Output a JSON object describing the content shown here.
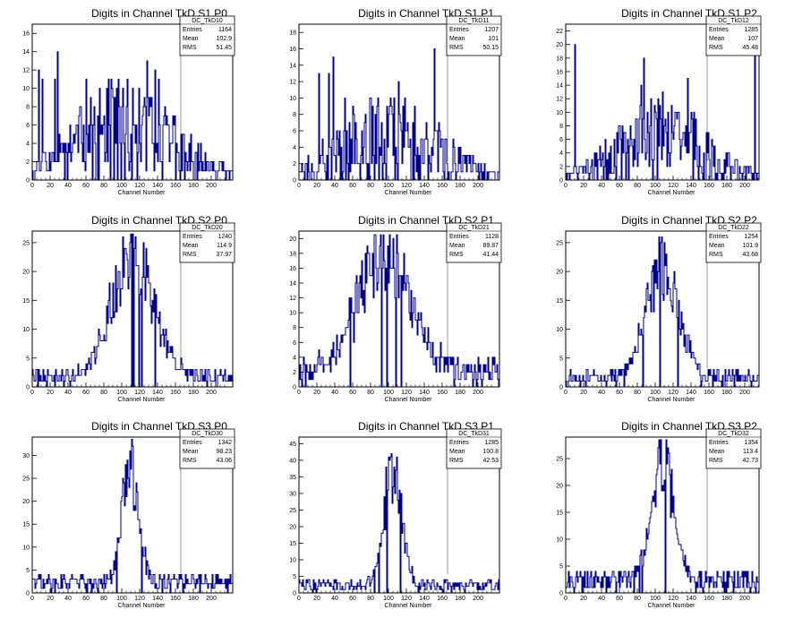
{
  "page": {
    "title": ""
  },
  "chart_data": [
    {
      "type": "histogram",
      "id": "p00",
      "title": "Digits in Channel TkD S1 P0",
      "xlabel": "Channel Number",
      "ylabel": "",
      "xlim": [
        0,
        224
      ],
      "ylim": [
        0,
        17
      ],
      "xticks": [
        0,
        20,
        40,
        60,
        80,
        100,
        120,
        140,
        160,
        180,
        200
      ],
      "yticks": [
        0,
        2,
        4,
        6,
        8,
        10,
        12,
        14,
        16
      ],
      "stats": {
        "name": "DC_TkD10",
        "entries": "1164",
        "mean": "102.9",
        "rms": "51.45"
      },
      "profile": {
        "shape": "flat",
        "mean": 102.9,
        "rms": 51.45,
        "peak": 16,
        "base": 7,
        "seed": 11
      }
    },
    {
      "type": "histogram",
      "id": "p01",
      "title": "Digits in Channel TkD S1 P1",
      "xlabel": "Channel Number",
      "ylabel": "",
      "xlim": [
        0,
        224
      ],
      "ylim": [
        0,
        19
      ],
      "xticks": [
        0,
        20,
        40,
        60,
        80,
        100,
        120,
        140,
        160,
        180,
        200
      ],
      "yticks": [
        0,
        2,
        4,
        6,
        8,
        10,
        12,
        14,
        16,
        18
      ],
      "stats": {
        "name": "DC_TkD11",
        "entries": "1207",
        "mean": "101",
        "rms": "50.15"
      },
      "profile": {
        "shape": "flat",
        "mean": 101,
        "rms": 50.15,
        "peak": 16,
        "base": 7,
        "seed": 23
      }
    },
    {
      "type": "histogram",
      "id": "p02",
      "title": "Digits in Channel TkD S1 P2",
      "xlabel": "Channel Number",
      "ylabel": "",
      "xlim": [
        0,
        216
      ],
      "ylim": [
        0,
        23
      ],
      "xticks": [
        0,
        20,
        40,
        60,
        80,
        100,
        120,
        140,
        160,
        180,
        200
      ],
      "yticks": [
        0,
        2,
        4,
        6,
        8,
        10,
        12,
        14,
        16,
        18,
        20,
        22
      ],
      "stats": {
        "name": "DC_TkD12",
        "entries": "1285",
        "mean": "107",
        "rms": "45.48"
      },
      "profile": {
        "shape": "flat",
        "mean": 107,
        "rms": 45.48,
        "peak": 22,
        "base": 8,
        "seed": 37
      }
    },
    {
      "type": "histogram",
      "id": "p10",
      "title": "Digits in Channel TkD S2 P0",
      "xlabel": "Channel Number",
      "ylabel": "",
      "xlim": [
        0,
        224
      ],
      "ylim": [
        0,
        27
      ],
      "xticks": [
        0,
        20,
        40,
        60,
        80,
        100,
        120,
        140,
        160,
        180,
        200
      ],
      "yticks": [
        0,
        5,
        10,
        15,
        20,
        25
      ],
      "stats": {
        "name": "DC_TkD20",
        "entries": "1240",
        "mean": "114.9",
        "rms": "37.97"
      },
      "profile": {
        "shape": "gauss",
        "mean": 112,
        "rms": 24,
        "peak": 26,
        "base": 2,
        "seed": 41
      }
    },
    {
      "type": "histogram",
      "id": "p11",
      "title": "Digits in Channel TkD S2 P1",
      "xlabel": "Channel Number",
      "ylabel": "",
      "xlim": [
        0,
        224
      ],
      "ylim": [
        0,
        21
      ],
      "xticks": [
        0,
        20,
        40,
        60,
        80,
        100,
        120,
        140,
        160,
        180,
        200
      ],
      "yticks": [
        0,
        2,
        4,
        6,
        8,
        10,
        12,
        14,
        16,
        18,
        20
      ],
      "stats": {
        "name": "DC_TkD21",
        "entries": "1128",
        "mean": "89.87",
        "rms": "41.44"
      },
      "profile": {
        "shape": "gauss",
        "mean": 95,
        "rms": 28,
        "peak": 20,
        "base": 3,
        "seed": 53
      }
    },
    {
      "type": "histogram",
      "id": "p12",
      "title": "Digits in Channel TkD S2 P2",
      "xlabel": "Channel Number",
      "ylabel": "",
      "xlim": [
        0,
        216
      ],
      "ylim": [
        0,
        27
      ],
      "xticks": [
        0,
        20,
        40,
        60,
        80,
        100,
        120,
        140,
        160,
        180,
        200
      ],
      "yticks": [
        0,
        5,
        10,
        15,
        20,
        25
      ],
      "stats": {
        "name": "DC_TkD22",
        "entries": "1254",
        "mean": "101.9",
        "rms": "43.68"
      },
      "profile": {
        "shape": "gauss",
        "mean": 108,
        "rms": 18,
        "peak": 25,
        "base": 2,
        "seed": 67
      }
    },
    {
      "type": "histogram",
      "id": "p20",
      "title": "Digits in Channel TkD S3 P0",
      "xlabel": "Channel Number",
      "ylabel": "",
      "xlim": [
        0,
        224
      ],
      "ylim": [
        0,
        34
      ],
      "xticks": [
        0,
        20,
        40,
        60,
        80,
        100,
        120,
        140,
        160,
        180,
        200
      ],
      "yticks": [
        0,
        5,
        10,
        15,
        20,
        25,
        30
      ],
      "stats": {
        "name": "DC_TkD30",
        "entries": "1342",
        "mean": "98.23",
        "rms": "43.06"
      },
      "profile": {
        "shape": "gauss",
        "mean": 109,
        "rms": 9,
        "peak": 32,
        "base": 3,
        "seed": 71
      }
    },
    {
      "type": "histogram",
      "id": "p21",
      "title": "Digits in Channel TkD S3 P1",
      "xlabel": "Channel Number",
      "ylabel": "",
      "xlim": [
        0,
        224
      ],
      "ylim": [
        0,
        47
      ],
      "xticks": [
        0,
        20,
        40,
        60,
        80,
        100,
        120,
        140,
        160,
        180,
        200
      ],
      "yticks": [
        0,
        5,
        10,
        15,
        20,
        25,
        30,
        35,
        40,
        45
      ],
      "stats": {
        "name": "DC_TkD31",
        "entries": "1285",
        "mean": "100.8",
        "rms": "42.53"
      },
      "profile": {
        "shape": "gauss",
        "mean": 104,
        "rms": 10,
        "peak": 43,
        "base": 3,
        "seed": 83
      }
    },
    {
      "type": "histogram",
      "id": "p22",
      "title": "Digits in Channel TkD S3 P2",
      "xlabel": "Channel Number",
      "ylabel": "",
      "xlim": [
        0,
        216
      ],
      "ylim": [
        0,
        29
      ],
      "xticks": [
        0,
        20,
        40,
        60,
        80,
        100,
        120,
        140,
        160,
        180,
        200
      ],
      "yticks": [
        0,
        5,
        10,
        15,
        20,
        25
      ],
      "stats": {
        "name": "DC_TkD32",
        "entries": "1354",
        "mean": "113.4",
        "rms": "42.73"
      },
      "profile": {
        "shape": "gauss",
        "mean": 108,
        "rms": 12,
        "peak": 28,
        "base": 3,
        "seed": 97
      }
    }
  ],
  "stat_labels": {
    "entries": "Entries",
    "mean": "Mean",
    "rms": "RMS"
  },
  "colors": {
    "line": "#00008b",
    "axis": "#000000",
    "background": "#ffffff"
  }
}
